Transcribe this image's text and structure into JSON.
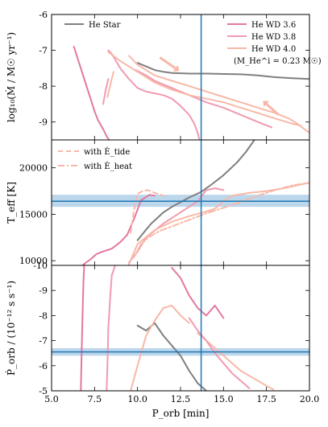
{
  "chart_data": [
    {
      "type": "line",
      "ylabel": "log₁₀(Ṁ / M☉ yr⁻¹)",
      "xlim": [
        5.0,
        20.0
      ],
      "ylim": [
        -9.5,
        -6.0
      ],
      "yticks": [
        -9,
        -8,
        -7,
        -6
      ],
      "legend": {
        "placement": "top",
        "entries": [
          {
            "label": "He Star",
            "color": "#7f7f7f"
          },
          {
            "label": "He WD 3.6",
            "color": "#e377a2"
          },
          {
            "label": "He WD 3.8",
            "color": "#f19ab0"
          },
          {
            "label": "He WD 4.0",
            "color": "#f8b8a8"
          },
          {
            "label": "(M_He^i = 0.23 M☉)",
            "color": ""
          }
        ]
      },
      "vline": {
        "x": 13.7,
        "color": "#1f77b4"
      },
      "series": [
        {
          "name": "He Star",
          "color": "#7f7f7f",
          "x": [
            10.0,
            10.5,
            11.0,
            11.5,
            12.0,
            13.0,
            14.0,
            15.0,
            16.0,
            17.0,
            18.0,
            19.0,
            20.0
          ],
          "y": [
            -7.35,
            -7.45,
            -7.55,
            -7.6,
            -7.63,
            -7.65,
            -7.65,
            -7.66,
            -7.67,
            -7.7,
            -7.75,
            -7.78,
            -7.8
          ]
        },
        {
          "name": "He WD 3.6",
          "color": "#e377a2",
          "x": [
            6.3,
            6.5,
            6.7,
            6.9,
            7.1,
            7.3,
            7.5,
            7.7,
            8.0,
            8.2,
            8.35
          ],
          "y": [
            -6.9,
            -7.2,
            -7.5,
            -7.8,
            -8.1,
            -8.4,
            -8.7,
            -8.95,
            -9.2,
            -9.4,
            -9.5
          ]
        },
        {
          "name": "He WD 3.8",
          "color": "#f19ab0",
          "x": [
            8.3,
            8.5,
            9.0,
            9.5,
            10.0,
            10.5,
            11.0,
            11.5,
            12.0,
            12.5,
            13.0,
            13.3,
            13.5,
            13.6
          ],
          "y": [
            -7.0,
            -7.1,
            -7.5,
            -7.8,
            -8.05,
            -8.15,
            -8.2,
            -8.25,
            -8.35,
            -8.55,
            -8.8,
            -9.05,
            -9.3,
            -9.5
          ]
        },
        {
          "name": "He WD 4.0",
          "color": "#f8b8a8",
          "x": [
            9.5,
            10.0,
            11.0,
            12.0,
            13.0,
            14.0,
            15.0,
            16.0,
            17.0,
            18.0,
            18.8,
            19.3,
            19.7,
            20.0
          ],
          "y": [
            -7.15,
            -7.4,
            -7.7,
            -7.85,
            -8.0,
            -8.15,
            -8.3,
            -8.45,
            -8.6,
            -8.75,
            -8.9,
            -9.05,
            -9.2,
            -9.3
          ]
        },
        {
          "name": "",
          "color": "#f19ab0",
          "x": [
            9.9,
            10.5,
            11.0,
            12.0,
            13.0,
            14.0,
            15.0,
            16.0,
            17.0,
            17.8
          ],
          "y": [
            -7.55,
            -7.7,
            -7.85,
            -8.05,
            -8.25,
            -8.45,
            -8.6,
            -8.8,
            -9.0,
            -9.15
          ]
        },
        {
          "name": "",
          "color": "#f8b8a8",
          "x": [
            8.3,
            9.0,
            10.0,
            11.0,
            12.0,
            13.0,
            14.0,
            15.0,
            16.0,
            17.0,
            18.0,
            19.0,
            19.5
          ],
          "y": [
            -7.05,
            -7.3,
            -7.6,
            -7.9,
            -8.1,
            -8.25,
            -8.35,
            -8.45,
            -8.6,
            -8.75,
            -8.9,
            -9.05,
            -9.1
          ]
        },
        {
          "name": "",
          "color": "#f8b8a8",
          "x": [
            8.25,
            8.4,
            8.6
          ],
          "y": [
            -8.3,
            -8.0,
            -7.6
          ]
        },
        {
          "name": "",
          "color": "#f19ab0",
          "x": [
            8.0,
            8.15,
            8.3
          ],
          "y": [
            -8.5,
            -8.1,
            -7.8
          ]
        }
      ]
    },
    {
      "type": "line",
      "ylabel": "T_eff [K]",
      "xlim": [
        5.0,
        20.0
      ],
      "ylim": [
        9500,
        23000
      ],
      "yticks": [
        10000,
        15000,
        20000
      ],
      "legend": {
        "placement": "top-left",
        "entries": [
          {
            "label": "with Ė_tide",
            "style": "dashed",
            "color": "#f8b8a8"
          },
          {
            "label": "with Ė_heat",
            "style": "dashdot",
            "color": "#f8b8a8"
          }
        ]
      },
      "band": {
        "y": [
          15800,
          17100
        ],
        "color": "#a6c8e4"
      },
      "hline": {
        "y": 16400,
        "color": "#1f77b4"
      },
      "vline": {
        "x": 13.7,
        "color": "#1f77b4"
      },
      "series": [
        {
          "name": "He Star",
          "color": "#7f7f7f",
          "x": [
            10.0,
            10.3,
            10.8,
            11.5,
            12.0,
            13.0,
            13.7,
            14.3,
            15.0,
            15.8,
            16.3,
            16.8
          ],
          "y": [
            12200,
            12900,
            14000,
            15200,
            15800,
            16800,
            17400,
            18200,
            19200,
            20600,
            21700,
            23000
          ]
        },
        {
          "name": "He WD 3.6",
          "color": "#e377a2",
          "x": [
            6.8,
            7.0,
            7.3,
            7.6,
            8.0,
            8.5,
            9.0,
            9.4,
            9.8,
            10.2,
            10.7,
            11.0
          ],
          "y": [
            9500,
            9800,
            10200,
            10700,
            11000,
            11300,
            12000,
            12800,
            14500,
            16500,
            17100,
            17000
          ]
        },
        {
          "name": "He WD 3.8",
          "color": "#f19ab0",
          "x": [
            9.5,
            10.0,
            10.5,
            11.5,
            12.5,
            13.5,
            14.0,
            14.5,
            15.0
          ],
          "y": [
            9800,
            11000,
            12500,
            14000,
            15200,
            16400,
            17600,
            17800,
            17600
          ]
        },
        {
          "name": "He WD 4.0",
          "color": "#f8b8a8",
          "x": [
            9.5,
            10.0,
            11.0,
            12.0,
            13.0,
            14.0,
            14.5,
            15.0,
            15.5,
            16.5,
            17.5,
            18.5,
            20.0
          ],
          "y": [
            9600,
            11800,
            13300,
            14200,
            14800,
            15300,
            15600,
            16400,
            17000,
            17300,
            17500,
            17800,
            18400
          ]
        },
        {
          "name": "with Ė_tide",
          "style": "dashed",
          "color": "#f8b8a8",
          "x": [
            9.6,
            9.8,
            10.0,
            10.3,
            10.6,
            11.0,
            11.5
          ],
          "y": [
            13000,
            15500,
            17200,
            17500,
            17600,
            17300,
            17000
          ]
        },
        {
          "name": "with Ė_heat",
          "style": "dashdot",
          "color": "#f8b8a8",
          "x": [
            9.8,
            10.2,
            10.7,
            11.3,
            12.0,
            13.0,
            14.0,
            15.0,
            16.0,
            17.0,
            18.0,
            19.0,
            20.0
          ],
          "y": [
            10400,
            11800,
            12600,
            13200,
            13700,
            14400,
            15100,
            15700,
            16300,
            17000,
            17600,
            18100,
            18400
          ]
        }
      ]
    },
    {
      "type": "line",
      "ylabel": "Ṗ_orb / (10⁻¹² s s⁻¹)",
      "xlabel": "P_orb [min]",
      "xlim": [
        5.0,
        20.0
      ],
      "ylim": [
        -5.0,
        -10.0
      ],
      "yticks": [
        -5,
        -6,
        -7,
        -8,
        -9,
        -10
      ],
      "xticks": [
        5.0,
        7.5,
        10.0,
        12.5,
        15.0,
        17.5,
        20.0
      ],
      "band": {
        "y": [
          -6.4,
          -6.7
        ],
        "color": "#a6c8e4"
      },
      "hline": {
        "y": -6.55,
        "color": "#1f77b4"
      },
      "vline": {
        "x": 13.7,
        "color": "#1f77b4"
      },
      "series": [
        {
          "name": "He Star",
          "color": "#7f7f7f",
          "x": [
            10.0,
            10.5,
            11.0,
            11.5,
            12.0,
            12.5,
            13.0,
            13.5,
            14.0
          ],
          "y": [
            -7.6,
            -7.4,
            -7.7,
            -7.2,
            -6.8,
            -6.4,
            -5.8,
            -5.3,
            -5.0
          ]
        },
        {
          "name": "He WD 3.6",
          "color": "#e377a2",
          "x": [
            6.7,
            6.75,
            6.8,
            6.85,
            6.9
          ],
          "y": [
            -5.0,
            -6.5,
            -8.0,
            -9.3,
            -10.0
          ]
        },
        {
          "name": "He WD 3.8",
          "color": "#f19ab0",
          "x": [
            8.2,
            8.25,
            8.3,
            8.4,
            8.5,
            8.7
          ],
          "y": [
            -5.0,
            -6.0,
            -7.5,
            -8.6,
            -9.6,
            -10.0
          ]
        },
        {
          "name": "He WD 4.0",
          "color": "#f8b8a8",
          "x": [
            9.6,
            10.0,
            10.5,
            11.0,
            11.5,
            12.0,
            12.5,
            13.0
          ],
          "y": [
            -5.0,
            -6.0,
            -7.2,
            -7.8,
            -8.3,
            -8.4,
            -8.0,
            -7.7
          ]
        },
        {
          "name": "",
          "color": "#f8b8a8",
          "x": [
            13.5,
            14.0,
            14.5,
            15.0,
            15.5,
            16.0,
            16.5,
            17.0,
            17.5,
            17.9
          ],
          "y": [
            -7.3,
            -7.0,
            -6.7,
            -6.4,
            -6.1,
            -5.8,
            -5.6,
            -5.4,
            -5.2,
            -5.05
          ]
        },
        {
          "name": "",
          "color": "#e377a2",
          "x": [
            12.0,
            12.5,
            13.0,
            13.5,
            14.0,
            14.5,
            15.0
          ],
          "y": [
            -9.9,
            -9.5,
            -8.8,
            -8.3,
            -8.0,
            -8.4,
            -7.9
          ]
        },
        {
          "name": "",
          "color": "#f19ab0",
          "x": [
            13.0,
            13.5,
            14.0,
            14.5,
            15.0,
            15.5,
            16.0,
            16.5
          ],
          "y": [
            -7.9,
            -7.4,
            -7.0,
            -6.5,
            -6.1,
            -5.7,
            -5.4,
            -5.1
          ]
        }
      ]
    }
  ]
}
